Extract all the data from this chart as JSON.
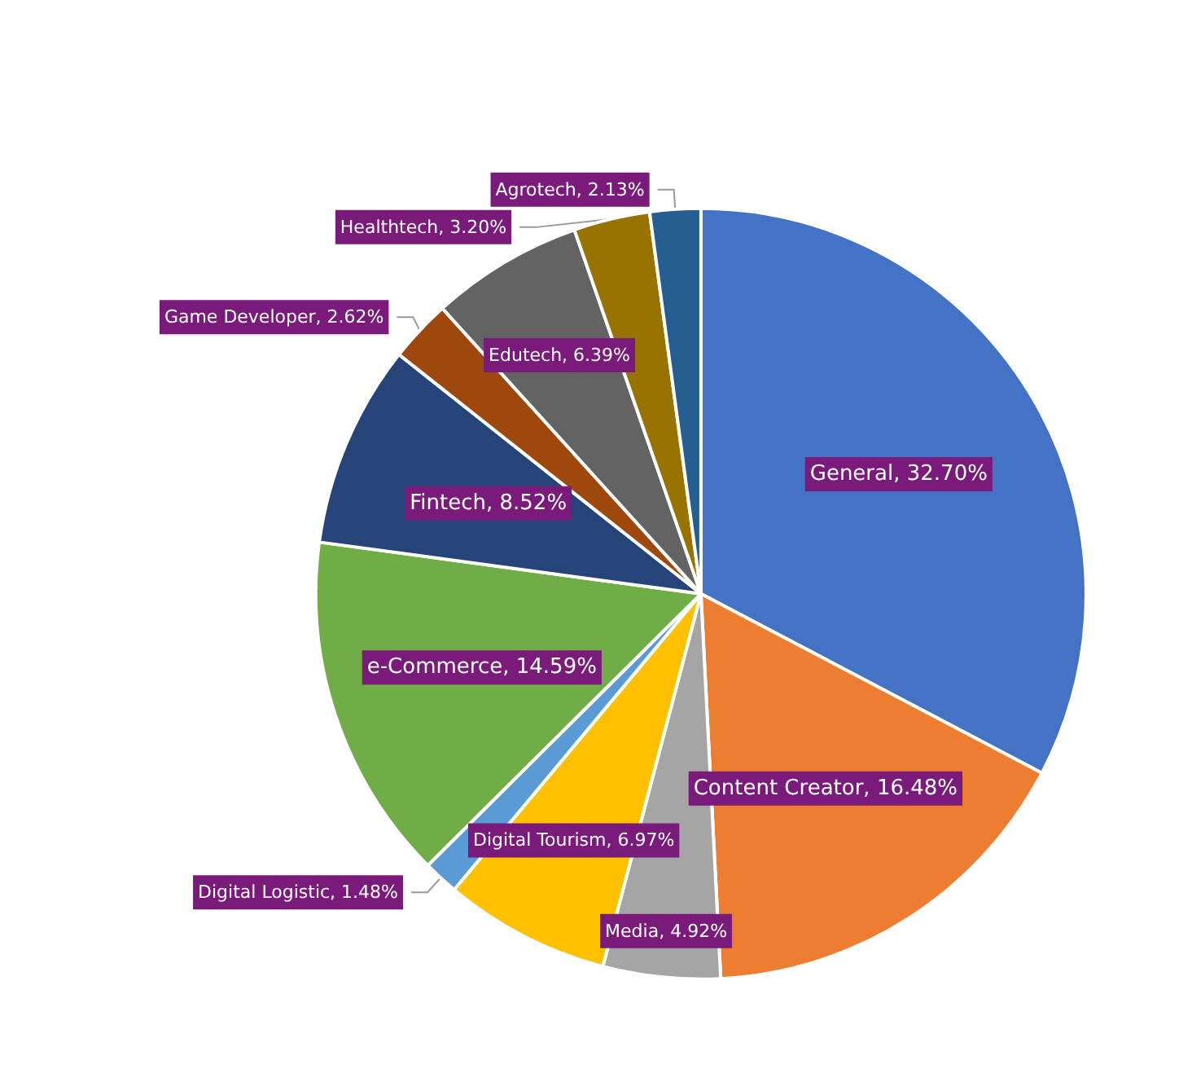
{
  "chart_data": {
    "type": "pie",
    "categories": [
      "General",
      "Content Creator",
      "Media",
      "Digital Tourism",
      "Digital Logistic",
      "e-Commerce",
      "Fintech",
      "Game Developer",
      "Edutech",
      "Healthtech",
      "Agrotech"
    ],
    "values": [
      32.7,
      16.48,
      4.92,
      6.97,
      1.48,
      14.59,
      8.52,
      2.62,
      6.39,
      3.2,
      2.13
    ],
    "value_labels": [
      "32.70%",
      "16.48%",
      "4.92%",
      "6.97%",
      "1.48%",
      "14.59%",
      "8.52%",
      "2.62%",
      "6.39%",
      "3.20%",
      "2.13%"
    ],
    "colors": [
      "#4472c4",
      "#ed7d31",
      "#a5a5a5",
      "#ffc000",
      "#5b9bd5",
      "#70ad47",
      "#264478",
      "#9e480e",
      "#636363",
      "#997300",
      "#255e91"
    ]
  }
}
